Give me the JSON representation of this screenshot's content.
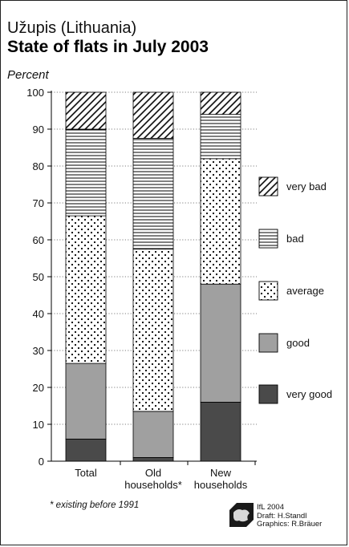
{
  "chart_data": {
    "type": "bar",
    "stacked": true,
    "title": "Užupis (Lithuania)",
    "subtitle": "State of flats in July 2003",
    "ylabel": "Percent",
    "ylim": [
      0,
      100
    ],
    "yticks": [
      0,
      10,
      20,
      30,
      40,
      50,
      60,
      70,
      80,
      90,
      100
    ],
    "grid": true,
    "categories": [
      [
        "Total"
      ],
      [
        "Old",
        "households*"
      ],
      [
        "New",
        "households"
      ]
    ],
    "series": [
      {
        "name": "very good",
        "values": [
          6,
          1,
          16
        ],
        "color": "#4a4a4a"
      },
      {
        "name": "good",
        "values": [
          20.5,
          12.5,
          32
        ],
        "color": "#a0a0a0"
      },
      {
        "name": "average",
        "values": [
          40,
          44,
          34
        ],
        "color": "#ffffff"
      },
      {
        "name": "bad",
        "values": [
          23.5,
          30,
          12
        ],
        "color": "#ffffff"
      },
      {
        "name": "very bad",
        "values": [
          10,
          12.5,
          6
        ],
        "color": "#ffffff"
      }
    ],
    "legend_position": "right",
    "footnote": "* existing before 1991"
  },
  "credits": [
    "IfL 2004",
    "Draft: H.Standl",
    "Graphics: R.Bräuer"
  ]
}
